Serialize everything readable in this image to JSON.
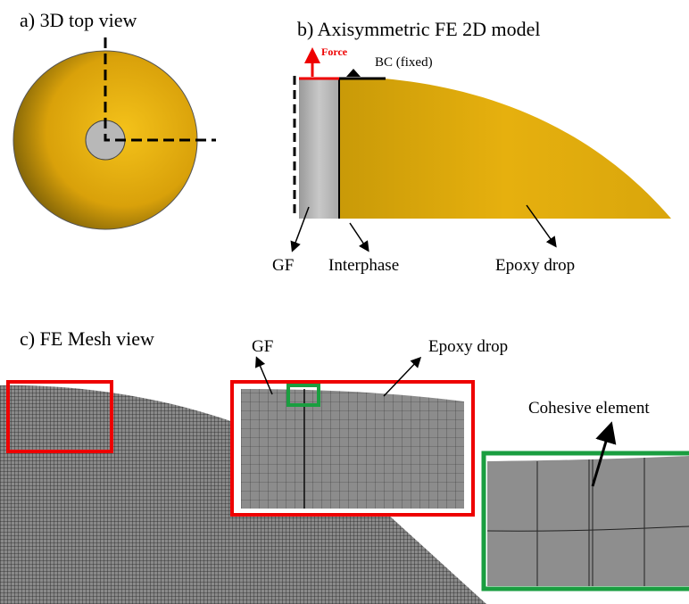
{
  "panel_a": {
    "title": "a) 3D top view"
  },
  "panel_b": {
    "title": "b) Axisymmetric FE 2D model",
    "force": "Force",
    "bc": "BC (fixed)",
    "gf": "GF",
    "interphase": "Interphase",
    "epoxy": "Epoxy drop"
  },
  "panel_c": {
    "title": "c) FE Mesh view",
    "gf": "GF",
    "epoxy": "Epoxy drop",
    "cohesive": "Cohesive element"
  }
}
